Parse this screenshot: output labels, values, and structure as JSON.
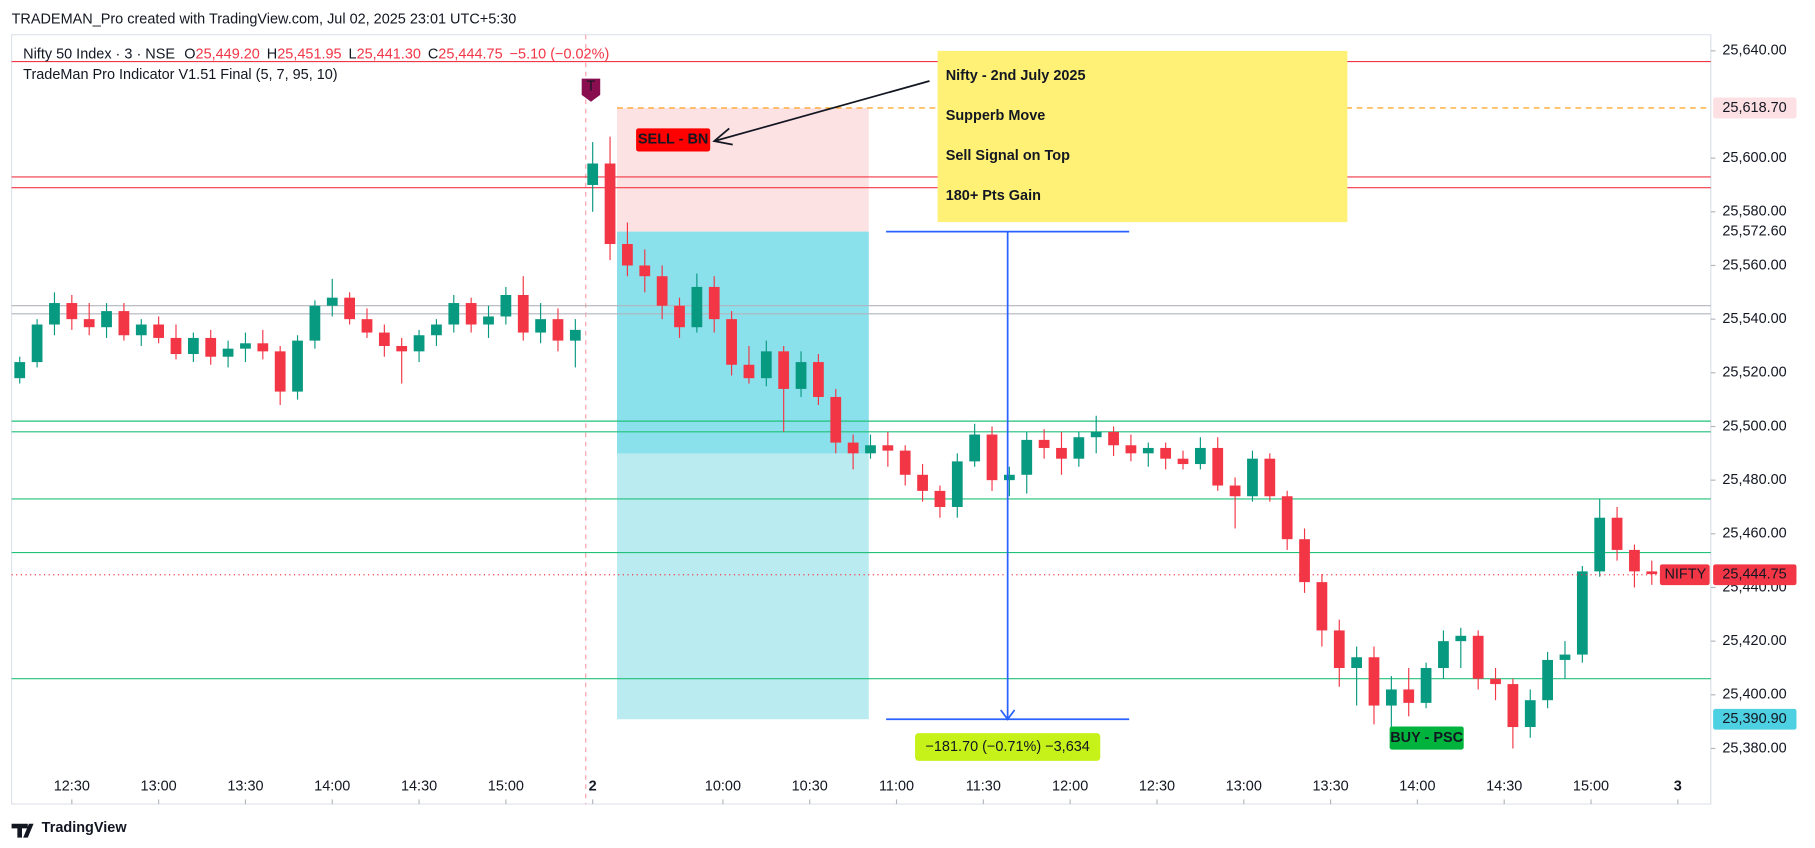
{
  "header": "TRADEMAN_Pro created with TradingView.com, Jul 02, 2025 23:01 UTC+5:30",
  "brand": "TradingView",
  "chart_data": {
    "type": "candlestick",
    "symbol": "Nifty 50 Index · 3 · NSE",
    "ohlc_legend": [
      {
        "key": "O",
        "value": "25,449.20"
      },
      {
        "key": "H",
        "value": "25,451.95"
      },
      {
        "key": "L",
        "value": "25,441.30"
      },
      {
        "key": "C",
        "value": "25,444.75"
      }
    ],
    "change": "−5.10 (−0.02%)",
    "indicator": "TradeMan Pro Indicator V1.51 Final (5, 7, 95, 10)",
    "annotation": [
      "Nifty - 2nd July 2025",
      "Supperb Move",
      "Sell Signal on Top",
      "180+ Pts Gain"
    ],
    "up_color": "#089981",
    "down_color": "#f23645",
    "xlim": [
      -0.47,
      97.4
    ],
    "ylim": [
      25359.3,
      25646
    ],
    "xticks": [
      {
        "value": 3,
        "label": "12:30"
      },
      {
        "value": 8,
        "label": "13:00"
      },
      {
        "value": 13,
        "label": "13:30"
      },
      {
        "value": 18,
        "label": "14:00"
      },
      {
        "value": 23,
        "label": "14:30"
      },
      {
        "value": 28,
        "label": "15:00"
      },
      {
        "value": 33,
        "label": "2"
      },
      {
        "value": 40.5,
        "label": "10:00"
      },
      {
        "value": 45.5,
        "label": "10:30"
      },
      {
        "value": 50.5,
        "label": "11:00"
      },
      {
        "value": 55.5,
        "label": "11:30"
      },
      {
        "value": 60.5,
        "label": "12:00"
      },
      {
        "value": 65.5,
        "label": "12:30"
      },
      {
        "value": 70.5,
        "label": "13:00"
      },
      {
        "value": 75.5,
        "label": "13:30"
      },
      {
        "value": 80.5,
        "label": "14:00"
      },
      {
        "value": 85.5,
        "label": "14:30"
      },
      {
        "value": 90.5,
        "label": "15:00"
      },
      {
        "value": 95.5,
        "label": "3"
      }
    ],
    "yticks": [
      {
        "value": 25380,
        "label": "25,380.00"
      },
      {
        "value": 25400,
        "label": "25,400.00"
      },
      {
        "value": 25420,
        "label": "25,420.00"
      },
      {
        "value": 25440,
        "label": "25,440.00"
      },
      {
        "value": 25460,
        "label": "25,460.00"
      },
      {
        "value": 25480,
        "label": "25,480.00"
      },
      {
        "value": 25500,
        "label": "25,500.00"
      },
      {
        "value": 25520,
        "label": "25,520.00"
      },
      {
        "value": 25540,
        "label": "25,540.00"
      },
      {
        "value": 25560,
        "label": "25,560.00"
      },
      {
        "value": 25580,
        "label": "25,580.00"
      },
      {
        "value": 25600,
        "label": "25,600.00"
      },
      {
        "value": 25640,
        "label": "25,640.00"
      }
    ],
    "session_break": 32.6,
    "levels": [
      {
        "value": 25636,
        "color": "#f23645"
      },
      {
        "value": 25593,
        "color": "#f23645"
      },
      {
        "value": 25589,
        "color": "#f23645"
      },
      {
        "value": 25545,
        "color": "#b2b5be"
      },
      {
        "value": 25542,
        "color": "#b2b5be"
      },
      {
        "value": 25502,
        "color": "#22c17a"
      },
      {
        "value": 25498,
        "color": "#22c17a"
      },
      {
        "value": 25473,
        "color": "#22c17a"
      },
      {
        "value": 25453,
        "color": "#22c17a"
      },
      {
        "value": 25406,
        "color": "#22c17a"
      }
    ],
    "position": {
      "start": 34.4,
      "end": 48.9,
      "stop": 25618.7,
      "entry": 25572.6,
      "progress": 25490,
      "target": 25390.9
    },
    "measure": {
      "x": 56.9,
      "start": 49.9,
      "end": 63.9,
      "from": 25572.6,
      "to": 25390.9,
      "label": "−181.70 (−0.71%) −3,634"
    },
    "signals": [
      {
        "text": "SELL - BN",
        "x": 35.5,
        "price": 25606.8,
        "color": "#ff0000"
      },
      {
        "text": "BUY - PSC",
        "x": 78.9,
        "price": 25383.9,
        "color": "#00b33c"
      }
    ],
    "trade_marker": {
      "text": "T",
      "x": 32.9,
      "price": 25621
    },
    "price_labels": [
      {
        "value": 25618.7,
        "label": "25,618.70",
        "bg": "#fde0e3",
        "fg": "#c2185b"
      },
      {
        "value": 25572.6,
        "label": "25,572.60",
        "bg": "#ffffff",
        "fg": "#131722"
      },
      {
        "value": 25390.9,
        "label": "25,390.90",
        "bg": "#4dd0e1",
        "fg": "#131722"
      }
    ],
    "last": {
      "name": "NIFTY",
      "value": 25444.75,
      "label": "25,444.75",
      "color": "#f23645"
    },
    "candles": [
      [
        25518,
        25526,
        25516,
        25524
      ],
      [
        25524,
        25540,
        25522,
        25538
      ],
      [
        25538,
        25550,
        25534,
        25546
      ],
      [
        25546,
        25549,
        25536,
        25540
      ],
      [
        25540,
        25546,
        25534,
        25537
      ],
      [
        25537,
        25546,
        25533,
        25543
      ],
      [
        25543,
        25546,
        25532,
        25534
      ],
      [
        25534,
        25540,
        25530,
        25538
      ],
      [
        25538,
        25541,
        25531,
        25533
      ],
      [
        25533,
        25538,
        25525,
        25527
      ],
      [
        25527,
        25535,
        25524,
        25533
      ],
      [
        25533,
        25536,
        25523,
        25526
      ],
      [
        25526,
        25532,
        25522,
        25529
      ],
      [
        25529,
        25535,
        25524,
        25531
      ],
      [
        25531,
        25536,
        25525,
        25528
      ],
      [
        25528,
        25530,
        25508,
        25513
      ],
      [
        25513,
        25534,
        25510,
        25532
      ],
      [
        25532,
        25547,
        25529,
        25545
      ],
      [
        25545,
        25555,
        25541,
        25548
      ],
      [
        25548,
        25550,
        25538,
        25540
      ],
      [
        25540,
        25544,
        25533,
        25535
      ],
      [
        25535,
        25538,
        25526,
        25530
      ],
      [
        25530,
        25533,
        25516,
        25528
      ],
      [
        25528,
        25536,
        25524,
        25534
      ],
      [
        25534,
        25540,
        25530,
        25538
      ],
      [
        25538,
        25549,
        25535,
        25546
      ],
      [
        25546,
        25548,
        25535,
        25538
      ],
      [
        25538,
        25545,
        25533,
        25541
      ],
      [
        25541,
        25552,
        25538,
        25549
      ],
      [
        25549,
        25556,
        25532,
        25535
      ],
      [
        25535,
        25546,
        25531,
        25540
      ],
      [
        25540,
        25544,
        25528,
        25532
      ],
      [
        25532,
        25540,
        25522,
        25536
      ],
      [
        25590,
        25606,
        25580,
        25598
      ],
      [
        25598,
        25608,
        25562,
        25568
      ],
      [
        25568,
        25576,
        25556,
        25560
      ],
      [
        25560,
        25566,
        25550,
        25556
      ],
      [
        25556,
        25560,
        25540,
        25545
      ],
      [
        25545,
        25548,
        25533,
        25537
      ],
      [
        25537,
        25557,
        25535,
        25552
      ],
      [
        25552,
        25556,
        25535,
        25540
      ],
      [
        25540,
        25543,
        25519,
        25523
      ],
      [
        25523,
        25530,
        25516,
        25518
      ],
      [
        25518,
        25532,
        25515,
        25528
      ],
      [
        25528,
        25530,
        25498,
        25514
      ],
      [
        25514,
        25528,
        25511,
        25524
      ],
      [
        25524,
        25527,
        25508,
        25511
      ],
      [
        25511,
        25514,
        25490,
        25494
      ],
      [
        25494,
        25497,
        25484,
        25490
      ],
      [
        25490,
        25497,
        25488,
        25493
      ],
      [
        25493,
        25498,
        25485,
        25491
      ],
      [
        25491,
        25493,
        25478,
        25482
      ],
      [
        25482,
        25486,
        25472,
        25476
      ],
      [
        25476,
        25478,
        25466,
        25470
      ],
      [
        25470,
        25490,
        25466,
        25487
      ],
      [
        25487,
        25501,
        25485,
        25497
      ],
      [
        25497,
        25500,
        25476,
        25480
      ],
      [
        25480,
        25485,
        25474,
        25482
      ],
      [
        25482,
        25498,
        25475,
        25495
      ],
      [
        25495,
        25499,
        25488,
        25492
      ],
      [
        25492,
        25498,
        25482,
        25488
      ],
      [
        25488,
        25498,
        25485,
        25496
      ],
      [
        25496,
        25504,
        25490,
        25498
      ],
      [
        25498,
        25500,
        25489,
        25493
      ],
      [
        25493,
        25497,
        25487,
        25490
      ],
      [
        25490,
        25494,
        25485,
        25492
      ],
      [
        25492,
        25494,
        25484,
        25488
      ],
      [
        25488,
        25491,
        25484,
        25486
      ],
      [
        25486,
        25496,
        25484,
        25492
      ],
      [
        25492,
        25496,
        25476,
        25478
      ],
      [
        25478,
        25481,
        25462,
        25474
      ],
      [
        25474,
        25491,
        25472,
        25488
      ],
      [
        25488,
        25490,
        25472,
        25474
      ],
      [
        25474,
        25476,
        25454,
        25458
      ],
      [
        25458,
        25462,
        25438,
        25442
      ],
      [
        25442,
        25445,
        25418,
        25424
      ],
      [
        25424,
        25428,
        25403,
        25410
      ],
      [
        25410,
        25418,
        25396,
        25414
      ],
      [
        25414,
        25418,
        25389,
        25396
      ],
      [
        25396,
        25407,
        25385,
        25402
      ],
      [
        25402,
        25410,
        25392,
        25397
      ],
      [
        25397,
        25412,
        25395,
        25410
      ],
      [
        25410,
        25424,
        25406,
        25420
      ],
      [
        25420,
        25425,
        25410,
        25422
      ],
      [
        25422,
        25424,
        25402,
        25406
      ],
      [
        25406,
        25410,
        25398,
        25404
      ],
      [
        25404,
        25406,
        25380,
        25388
      ],
      [
        25388,
        25402,
        25384,
        25398
      ],
      [
        25398,
        25416,
        25395,
        25413
      ],
      [
        25413,
        25420,
        25406,
        25415
      ],
      [
        25415,
        25448,
        25412,
        25446
      ],
      [
        25446,
        25473,
        25444,
        25466
      ],
      [
        25466,
        25470,
        25450,
        25454
      ],
      [
        25454,
        25456,
        25440,
        25446
      ],
      [
        25446,
        25450,
        25441,
        25445
      ]
    ]
  }
}
